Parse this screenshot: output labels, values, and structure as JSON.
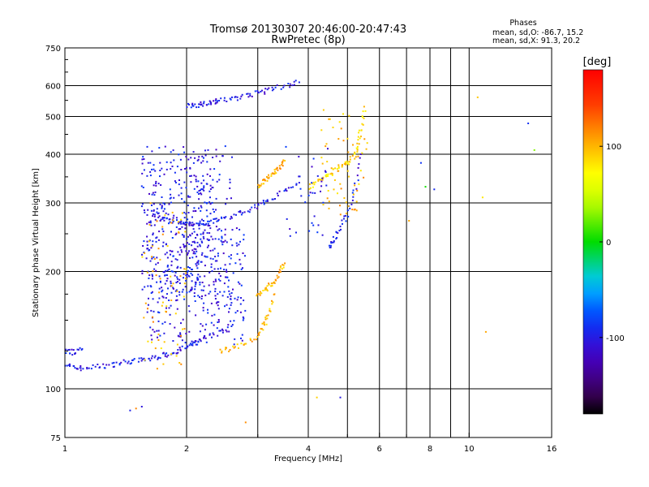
{
  "chart_data": {
    "type": "scatter",
    "title": "Tromsø 20130307 20:46:00-20:47:43",
    "subtitle": "RwPretec (8p)",
    "stats": {
      "heading": "Phases",
      "line1": "mean, sd,O: -86.7, 15.2",
      "line2": "mean, sd,X:  91.3, 20.2"
    },
    "xlabel": "Frequency [MHz]",
    "ylabel": "Stationary phase Virtual Height [km]",
    "x_scale": "log",
    "y_scale": "log",
    "xlim": [
      1,
      16
    ],
    "ylim": [
      75,
      750
    ],
    "x_ticks": [
      1,
      2,
      4,
      6,
      8,
      10,
      16
    ],
    "x_minor_ticks": [
      3,
      5,
      7,
      9
    ],
    "x_tick_labels": [
      "1",
      "2",
      "4",
      "6",
      "8",
      "10",
      "16"
    ],
    "y_ticks": [
      75,
      100,
      200,
      300,
      400,
      500,
      600,
      750
    ],
    "y_minor_ticks": [
      125,
      150,
      175,
      250,
      350,
      450,
      550,
      650,
      700
    ],
    "y_tick_labels": [
      "75",
      "100",
      "200",
      "300",
      "400",
      "500",
      "600",
      "750"
    ],
    "grid": true,
    "colorbar": {
      "label": "[deg]",
      "min": -180,
      "max": 180,
      "ticks": [
        100,
        0,
        -100
      ],
      "tick_labels": [
        "100",
        "0",
        "-100"
      ]
    },
    "traces": [
      {
        "x": [
          1.0,
          1.05,
          1.1,
          1.2,
          1.3,
          1.4,
          1.5,
          1.6,
          1.7,
          1.8,
          1.9,
          2.0,
          2.1,
          2.2,
          2.4,
          2.6
        ],
        "y": [
          116,
          113,
          113,
          114,
          115,
          117,
          118,
          119,
          121,
          123,
          125,
          128,
          131,
          134,
          139,
          146
        ],
        "phase": -100
      },
      {
        "x": [
          1.0,
          1.05,
          1.1
        ],
        "y": [
          125,
          124,
          126
        ],
        "phase": -100
      },
      {
        "x": [
          1.65,
          1.7,
          1.8,
          1.9,
          2.0,
          2.1,
          2.2,
          2.4,
          2.6,
          2.8,
          3.0,
          3.2,
          3.5,
          3.8
        ],
        "y": [
          290,
          275,
          270,
          268,
          266,
          265,
          267,
          272,
          278,
          286,
          296,
          306,
          322,
          338
        ],
        "phase": -100
      },
      {
        "x": [
          2.0,
          2.1,
          2.2,
          2.3,
          2.4,
          2.6,
          2.8,
          3.0,
          3.2,
          3.5,
          3.8
        ],
        "y": [
          530,
          535,
          540,
          545,
          548,
          555,
          565,
          575,
          585,
          600,
          612
        ],
        "phase": -100
      },
      {
        "x": [
          4.0,
          4.2,
          4.4,
          4.6,
          4.8,
          5.0,
          5.2,
          5.3,
          5.4,
          5.5
        ],
        "y": [
          330,
          340,
          350,
          360,
          370,
          380,
          395,
          420,
          460,
          530
        ],
        "phase": 85
      },
      {
        "x": [
          4.5,
          4.6,
          4.8,
          5.0,
          5.2,
          5.4
        ],
        "y": [
          230,
          240,
          260,
          280,
          320,
          400
        ],
        "phase": -100
      },
      {
        "x": [
          2.4,
          2.6,
          2.8,
          3.0,
          3.1,
          3.2,
          3.3
        ],
        "y": [
          125,
          127,
          131,
          137,
          145,
          155,
          175
        ],
        "phase": 100
      },
      {
        "x": [
          3.0,
          3.1,
          3.2,
          3.3,
          3.4,
          3.5
        ],
        "y": [
          175,
          178,
          183,
          190,
          200,
          210
        ],
        "phase": 100
      },
      {
        "x": [
          3.0,
          3.1,
          3.2,
          3.3,
          3.4,
          3.5
        ],
        "y": [
          330,
          340,
          350,
          360,
          370,
          385
        ],
        "phase": 100
      }
    ],
    "scatter_clouds": [
      {
        "x_range": [
          1.55,
          2.3
        ],
        "y_range": [
          170,
          420
        ],
        "count": 320,
        "phase": -100
      },
      {
        "x_range": [
          1.6,
          2.8
        ],
        "y_range": [
          130,
          260
        ],
        "count": 260,
        "phase": -100
      },
      {
        "x_range": [
          1.55,
          2.0
        ],
        "y_range": [
          110,
          300
        ],
        "count": 70,
        "phase": 100
      },
      {
        "x_range": [
          2.0,
          2.6
        ],
        "y_range": [
          160,
          420
        ],
        "count": 120,
        "phase": -100
      },
      {
        "x_range": [
          4.3,
          5.6
        ],
        "y_range": [
          280,
          520
        ],
        "count": 60,
        "phase": 100
      },
      {
        "x_range": [
          3.5,
          4.5
        ],
        "y_range": [
          240,
          420
        ],
        "count": 35,
        "phase": -100
      }
    ],
    "sparse_points": [
      {
        "x": 1.45,
        "y": 88,
        "phase": -100
      },
      {
        "x": 1.5,
        "y": 89,
        "phase": 100
      },
      {
        "x": 1.55,
        "y": 90,
        "phase": -100
      },
      {
        "x": 2.8,
        "y": 82,
        "phase": 100
      },
      {
        "x": 4.2,
        "y": 95,
        "phase": 90
      },
      {
        "x": 4.8,
        "y": 95,
        "phase": -100
      },
      {
        "x": 7.1,
        "y": 270,
        "phase": 100
      },
      {
        "x": 7.6,
        "y": 380,
        "phase": -100
      },
      {
        "x": 7.8,
        "y": 330,
        "phase": 10
      },
      {
        "x": 8.2,
        "y": 325,
        "phase": -100
      },
      {
        "x": 10.5,
        "y": 560,
        "phase": 100
      },
      {
        "x": 10.8,
        "y": 310,
        "phase": 100
      },
      {
        "x": 11.0,
        "y": 140,
        "phase": 90
      },
      {
        "x": 14.0,
        "y": 480,
        "phase": -100
      },
      {
        "x": 14.5,
        "y": 410,
        "phase": 10
      }
    ]
  }
}
